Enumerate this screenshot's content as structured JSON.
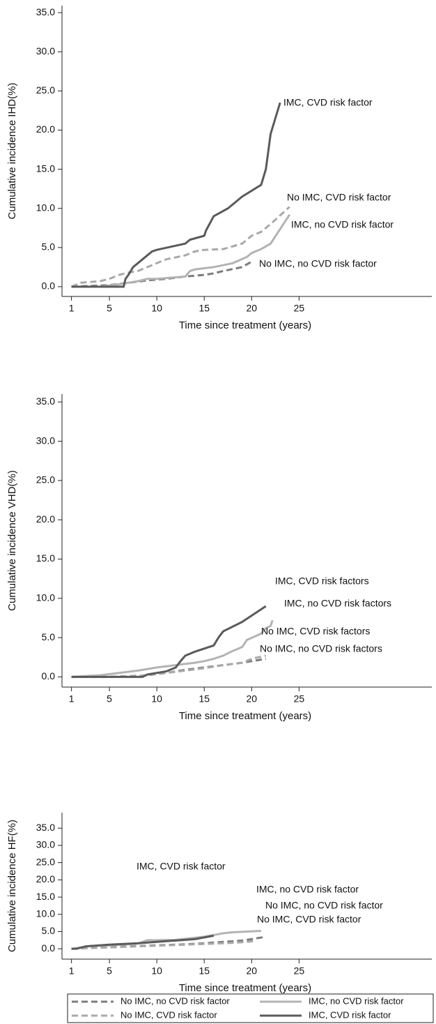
{
  "chart_data": [
    {
      "type": "line",
      "ylabel": "Cumulative incidence IHD(%)",
      "xlabel": "Time since treatment (years)",
      "xlim": [
        0,
        39
      ],
      "xticks": [
        1,
        5,
        10,
        15,
        20,
        25
      ],
      "ylim": [
        -1.25,
        35.9
      ],
      "yticks": [
        {
          "value": 0,
          "label": "0.0"
        },
        {
          "value": 5,
          "label": "5.0"
        },
        {
          "value": 10,
          "label": "10.0"
        },
        {
          "value": 15,
          "label": "15.0"
        },
        {
          "value": 20,
          "label": "20.0"
        },
        {
          "value": 25,
          "label": "25.0"
        },
        {
          "value": 30,
          "label": "30.0"
        },
        {
          "value": 35,
          "label": "35.0"
        }
      ],
      "annotations": [
        "IMC, CVD risk factor",
        "No IMC, CVD risk factor",
        "IMC, no CVD risk factor",
        "No IMC, no CVD risk factor"
      ],
      "series": [
        {
          "name": "No IMC, no CVD risk factor",
          "color": "#7c7c7c",
          "style": "dashed",
          "x": [
            1,
            5,
            7,
            9,
            11,
            13,
            15,
            16,
            17,
            19,
            20
          ],
          "values": [
            0,
            0.2,
            0.5,
            0.8,
            1,
            1.3,
            1.5,
            1.7,
            2,
            2.5,
            3.2
          ]
        },
        {
          "name": "No IMC, CVD risk factor",
          "color": "#a9a9a9",
          "style": "dashed",
          "x": [
            1,
            2,
            4,
            5,
            6,
            7,
            8,
            9,
            10,
            11,
            13,
            14,
            15,
            17,
            19,
            20,
            21,
            22,
            24
          ],
          "values": [
            0,
            0.5,
            0.7,
            1,
            1.5,
            1.8,
            2,
            2.5,
            3,
            3.5,
            4,
            4.5,
            4.7,
            4.8,
            5.5,
            6.5,
            7,
            8,
            10.2
          ]
        },
        {
          "name": "IMC, no CVD risk factor",
          "color": "#b3b3b3",
          "style": "solid",
          "x": [
            1,
            4,
            6,
            7,
            8,
            9,
            10,
            12,
            13,
            13.5,
            14,
            16,
            18,
            19.5,
            20,
            21,
            22,
            24
          ],
          "values": [
            0,
            0,
            0.3,
            0.5,
            0.7,
            1,
            1,
            1.2,
            1.3,
            2,
            2.2,
            2.5,
            3,
            3.8,
            4.3,
            4.8,
            5.5,
            9.2
          ]
        },
        {
          "name": "IMC, CVD risk factor",
          "color": "#5a5a5a",
          "style": "solid",
          "x": [
            1,
            6.5,
            6.7,
            7,
            7.5,
            8,
            8.5,
            9,
            9.5,
            10,
            13,
            13.5,
            15,
            15.2,
            16,
            17.5,
            18.5,
            19,
            21,
            21.5,
            22,
            23
          ],
          "values": [
            0,
            0,
            1,
            1.5,
            2.5,
            3,
            3.5,
            4,
            4.5,
            4.7,
            5.5,
            6,
            6.5,
            7.2,
            9,
            10,
            11,
            11.5,
            13,
            15,
            19.5,
            23.5
          ]
        }
      ]
    },
    {
      "type": "line",
      "ylabel": "Cumulative incidence VHD(%)",
      "xlabel": "Time since treatment (years)",
      "xlim": [
        0,
        39
      ],
      "xticks": [
        1,
        5,
        10,
        15,
        20,
        25
      ],
      "ylim": [
        -1.3,
        36
      ],
      "yticks": [
        {
          "value": 0,
          "label": "0.0"
        },
        {
          "value": 5,
          "label": "5.0"
        },
        {
          "value": 10,
          "label": "10.0"
        },
        {
          "value": 15,
          "label": "15.0"
        },
        {
          "value": 20,
          "label": "20.0"
        },
        {
          "value": 25,
          "label": "25.0"
        },
        {
          "value": 30,
          "label": "30.0"
        },
        {
          "value": 35,
          "label": "35.0"
        }
      ],
      "annotations": [
        "IMC, CVD risk factors",
        "IMC, no CVD risk factors",
        "No IMC,  CVD risk factors",
        "No IMC, no CVD risk factors"
      ],
      "series": [
        {
          "name": "No IMC, no CVD risk factor",
          "color": "#7c7c7c",
          "style": "dashed",
          "x": [
            1,
            5,
            9,
            11,
            13,
            15,
            17,
            19,
            21.5
          ],
          "values": [
            0,
            0,
            0.2,
            0.5,
            0.9,
            1.2,
            1.5,
            1.8,
            2.3
          ]
        },
        {
          "name": "No IMC, CVD risk factor",
          "color": "#a9a9a9",
          "style": "dashed",
          "x": [
            1,
            5,
            9,
            11,
            13,
            15,
            17,
            19,
            20,
            21.5
          ],
          "values": [
            0,
            0,
            0.2,
            0.5,
            0.8,
            1.1,
            1.5,
            1.8,
            2.3,
            2.7
          ]
        },
        {
          "name": "IMC, no CVD risk factor",
          "color": "#b3b3b3",
          "style": "solid",
          "x": [
            1,
            4,
            6,
            8,
            9,
            10,
            12,
            14,
            15,
            16,
            17,
            18,
            19,
            19.5,
            21,
            21.5,
            22,
            22.2
          ],
          "values": [
            0,
            0.2,
            0.5,
            0.8,
            1,
            1.2,
            1.5,
            1.8,
            2,
            2.3,
            2.7,
            3.3,
            3.8,
            4.7,
            5.5,
            6.2,
            6.5,
            7.2
          ]
        },
        {
          "name": "IMC, CVD risk factor",
          "color": "#5a5a5a",
          "style": "solid",
          "x": [
            1,
            8.5,
            9,
            11,
            12,
            12.5,
            13,
            14,
            16,
            16.5,
            17,
            19,
            21.5
          ],
          "values": [
            0,
            0,
            0.3,
            0.7,
            1.2,
            2,
            2.7,
            3.2,
            4,
            5,
            5.8,
            7,
            9
          ]
        }
      ]
    },
    {
      "type": "line",
      "ylabel": "Cumulative incidence HF(%)",
      "xlabel": "Time since treatment (years)",
      "xlim": [
        0,
        39
      ],
      "xticks": [
        1,
        5,
        10,
        15,
        20,
        25
      ],
      "ylim": [
        -3,
        39.5
      ],
      "yticks": [
        {
          "value": 0,
          "label": "0.0"
        },
        {
          "value": 5,
          "label": "5.0"
        },
        {
          "value": 10,
          "label": "10.0"
        },
        {
          "value": 15,
          "label": "15.0"
        },
        {
          "value": 20,
          "label": "20.0"
        },
        {
          "value": 25,
          "label": "25.0"
        },
        {
          "value": 30,
          "label": "30.0"
        },
        {
          "value": 35,
          "label": "35.0"
        }
      ],
      "annotations": [
        "IMC, CVD risk factor",
        "IMC, no CVD risk factor",
        "No IMC, no CVD risk factor",
        "No IMC, CVD risk factor"
      ],
      "series": [
        {
          "name": "No IMC, no CVD risk factor",
          "color": "#7c7c7c",
          "style": "dashed",
          "x": [
            1,
            3,
            5,
            8,
            10,
            13,
            15,
            17,
            19,
            20,
            21.5
          ],
          "values": [
            0,
            0.3,
            0.5,
            0.8,
            1,
            1.3,
            1.6,
            2,
            2.4,
            2.8,
            3.5
          ]
        },
        {
          "name": "No IMC, CVD risk factor",
          "color": "#a9a9a9",
          "style": "dashed",
          "x": [
            1,
            3,
            5,
            8,
            10,
            13,
            15,
            17,
            19,
            20.5
          ],
          "values": [
            0,
            0.2,
            0.4,
            0.7,
            0.9,
            1.2,
            1.4,
            1.6,
            1.9,
            2.3
          ]
        },
        {
          "name": "IMC, no CVD risk factor",
          "color": "#b3b3b3",
          "style": "solid",
          "x": [
            1,
            3,
            5,
            8,
            9,
            10,
            12,
            14,
            15,
            17,
            18,
            21
          ],
          "values": [
            0,
            0.8,
            1,
            1.5,
            2.5,
            2.5,
            2.6,
            3.2,
            3.5,
            4.5,
            4.8,
            5.2
          ]
        },
        {
          "name": "IMC, CVD risk factor",
          "color": "#5a5a5a",
          "style": "solid",
          "x": [
            1,
            1.5,
            2.5,
            5,
            8,
            11,
            14,
            16
          ],
          "values": [
            0,
            0,
            0.7,
            1.2,
            1.6,
            2.2,
            2.8,
            3.8
          ]
        }
      ]
    }
  ]
}
